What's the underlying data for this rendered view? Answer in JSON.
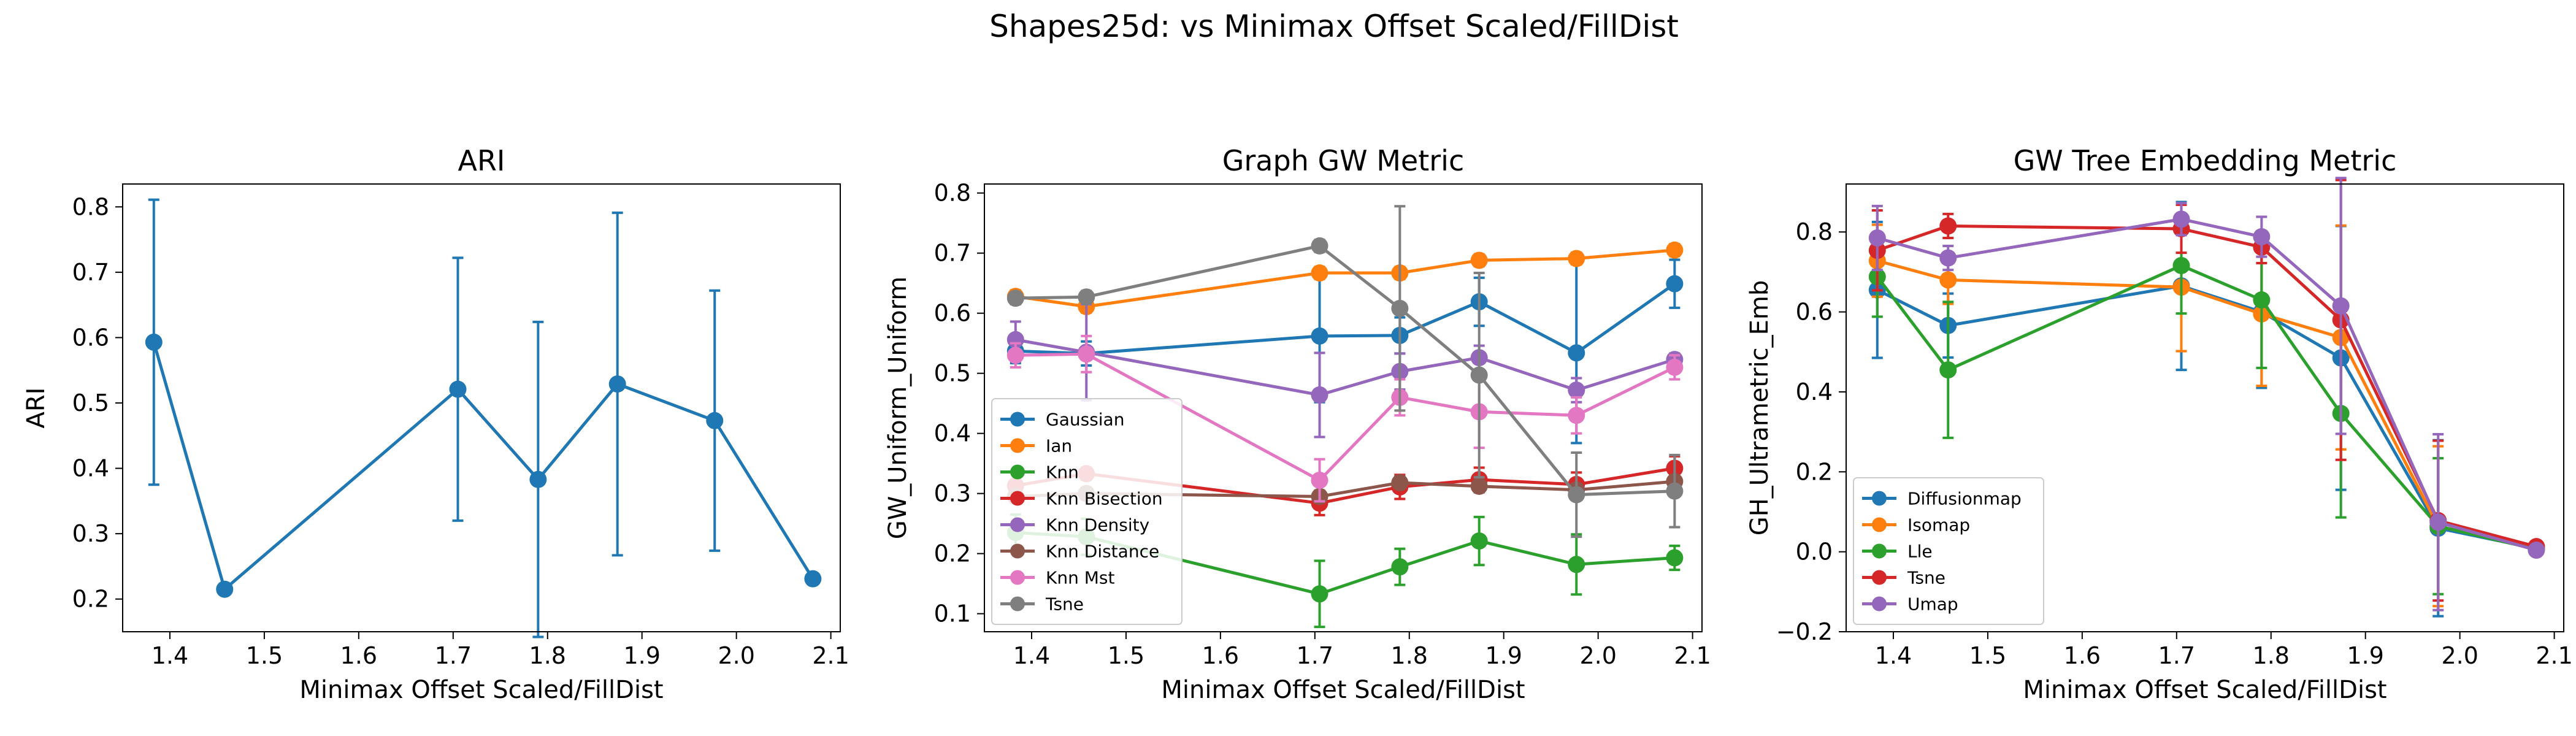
{
  "figure": {
    "suptitle": "Shapes25d: vs Minimax Offset Scaled/FillDist"
  },
  "chart_data": [
    {
      "type": "line",
      "title": "ARI",
      "xlabel": "Minimax Offset Scaled/FillDist",
      "ylabel": "ARI",
      "xlim": [
        1.35,
        2.11
      ],
      "ylim": [
        0.15,
        0.835
      ],
      "xticks": [
        1.4,
        1.5,
        1.6,
        1.7,
        1.8,
        1.9,
        2.0,
        2.1
      ],
      "xtick_labels": [
        "1.4",
        "1.5",
        "1.6",
        "1.7",
        "1.8",
        "1.9",
        "2.0",
        "2.1"
      ],
      "yticks": [
        0.2,
        0.3,
        0.4,
        0.5,
        0.6,
        0.7,
        0.8
      ],
      "ytick_labels": [
        "0.2",
        "0.3",
        "0.4",
        "0.5",
        "0.6",
        "0.7",
        "0.8"
      ],
      "grid": false,
      "legend": "none",
      "series": [
        {
          "color": "#1f77b4",
          "marker": "circle",
          "x": [
            1.383,
            1.458,
            1.705,
            1.79,
            1.874,
            1.977,
            2.081
          ],
          "y": [
            0.593,
            0.215,
            0.521,
            0.383,
            0.529,
            0.473,
            0.231
          ],
          "err": [
            0.218,
            0.0,
            0.201,
            0.241,
            0.262,
            0.199,
            0.0
          ]
        }
      ]
    },
    {
      "type": "line",
      "title": "Graph GW Metric",
      "xlabel": "Minimax Offset Scaled/FillDist",
      "ylabel": "GW_Uniform_Uniform",
      "xlim": [
        1.35,
        2.11
      ],
      "ylim": [
        0.07,
        0.815
      ],
      "xticks": [
        1.4,
        1.5,
        1.6,
        1.7,
        1.8,
        1.9,
        2.0,
        2.1
      ],
      "xtick_labels": [
        "1.4",
        "1.5",
        "1.6",
        "1.7",
        "1.8",
        "1.9",
        "2.0",
        "2.1"
      ],
      "yticks": [
        0.1,
        0.2,
        0.3,
        0.4,
        0.5,
        0.6,
        0.7,
        0.8
      ],
      "ytick_labels": [
        "0.1",
        "0.2",
        "0.3",
        "0.4",
        "0.5",
        "0.6",
        "0.7",
        "0.8"
      ],
      "grid": false,
      "legend": "lower-left",
      "series": [
        {
          "name": "Gaussian",
          "color": "#1f77b4",
          "x": [
            1.383,
            1.458,
            1.705,
            1.79,
            1.874,
            1.977,
            2.081
          ],
          "y": [
            0.537,
            0.533,
            0.562,
            0.563,
            0.619,
            0.534,
            0.649
          ],
          "err": [
            0.02,
            0.02,
            0.11,
            0.03,
            0.04,
            0.15,
            0.04
          ]
        },
        {
          "name": "Ian",
          "color": "#ff7f0e",
          "x": [
            1.383,
            1.458,
            1.705,
            1.79,
            1.874,
            1.977,
            2.081
          ],
          "y": [
            0.628,
            0.611,
            0.667,
            0.667,
            0.688,
            0.691,
            0.705
          ],
          "err": [
            0.01,
            0.01,
            0.01,
            0.01,
            0.01,
            0.01,
            0.01
          ]
        },
        {
          "name": "Knn",
          "color": "#2ca02c",
          "x": [
            1.383,
            1.458,
            1.705,
            1.79,
            1.874,
            1.977,
            2.081
          ],
          "y": [
            0.235,
            0.228,
            0.133,
            0.178,
            0.221,
            0.182,
            0.193
          ],
          "err": [
            0.03,
            0.03,
            0.055,
            0.03,
            0.04,
            0.05,
            0.02
          ]
        },
        {
          "name": "Knn Bisection",
          "color": "#d62728",
          "x": [
            1.383,
            1.458,
            1.705,
            1.79,
            1.874,
            1.977,
            2.081
          ],
          "y": [
            0.313,
            0.333,
            0.284,
            0.311,
            0.323,
            0.315,
            0.342
          ],
          "err": [
            0.01,
            0.01,
            0.02,
            0.02,
            0.02,
            0.02,
            0.02
          ]
        },
        {
          "name": "Knn Density",
          "color": "#9467bd",
          "x": [
            1.383,
            1.458,
            1.705,
            1.79,
            1.874,
            1.977,
            2.081
          ],
          "y": [
            0.556,
            0.535,
            0.464,
            0.503,
            0.526,
            0.472,
            0.523
          ],
          "err": [
            0.03,
            0.08,
            0.07,
            0.03,
            0.02,
            0.02,
            0.01
          ]
        },
        {
          "name": "Knn Distance",
          "color": "#8c564b",
          "x": [
            1.383,
            1.458,
            1.705,
            1.79,
            1.874,
            1.977,
            2.081
          ],
          "y": [
            0.295,
            0.3,
            0.295,
            0.318,
            0.312,
            0.306,
            0.32
          ],
          "err": [
            0.01,
            0.01,
            0.01,
            0.01,
            0.01,
            0.01,
            0.01
          ]
        },
        {
          "name": "Knn Mst",
          "color": "#e377c2",
          "x": [
            1.383,
            1.458,
            1.705,
            1.79,
            1.874,
            1.977,
            2.081
          ],
          "y": [
            0.53,
            0.532,
            0.322,
            0.46,
            0.436,
            0.43,
            0.51
          ],
          "err": [
            0.02,
            0.03,
            0.035,
            0.03,
            0.06,
            0.03,
            0.02
          ]
        },
        {
          "name": "Tsne",
          "color": "#7f7f7f",
          "x": [
            1.383,
            1.458,
            1.705,
            1.79,
            1.874,
            1.977,
            2.081
          ],
          "y": [
            0.625,
            0.627,
            0.712,
            0.608,
            0.497,
            0.298,
            0.304
          ],
          "err": [
            0.01,
            0.01,
            0.01,
            0.17,
            0.17,
            0.07,
            0.06
          ]
        }
      ]
    },
    {
      "type": "line",
      "title": "GW Tree Embedding Metric",
      "xlabel": "Minimax Offset Scaled/FillDist",
      "ylabel": "GH_Ultrametric_Emb",
      "xlim": [
        1.35,
        2.11
      ],
      "ylim": [
        -0.2,
        0.92
      ],
      "xticks": [
        1.4,
        1.5,
        1.6,
        1.7,
        1.8,
        1.9,
        2.0,
        2.1
      ],
      "xtick_labels": [
        "1.4",
        "1.5",
        "1.6",
        "1.7",
        "1.8",
        "1.9",
        "2.0",
        "2.1"
      ],
      "yticks": [
        -0.2,
        0.0,
        0.2,
        0.4,
        0.6,
        0.8
      ],
      "ytick_labels": [
        "−0.2",
        "0.0",
        "0.2",
        "0.4",
        "0.6",
        "0.8"
      ],
      "grid": false,
      "legend": "lower-left",
      "series": [
        {
          "name": "Diffusionmap",
          "color": "#1f77b4",
          "x": [
            1.383,
            1.458,
            1.705,
            1.79,
            1.874,
            1.977,
            2.081
          ],
          "y": [
            0.655,
            0.566,
            0.665,
            0.6,
            0.485,
            0.059,
            0.008
          ],
          "err": [
            0.17,
            0.08,
            0.21,
            0.19,
            0.33,
            0.22,
            0.01
          ]
        },
        {
          "name": "Isomap",
          "color": "#ff7f0e",
          "x": [
            1.383,
            1.458,
            1.705,
            1.79,
            1.874,
            1.977,
            2.081
          ],
          "y": [
            0.728,
            0.68,
            0.662,
            0.595,
            0.536,
            0.064,
            0.008
          ],
          "err": [
            0.09,
            0.06,
            0.16,
            0.18,
            0.28,
            0.2,
            0.01
          ]
        },
        {
          "name": "Lle",
          "color": "#2ca02c",
          "x": [
            1.383,
            1.458,
            1.705,
            1.79,
            1.874,
            1.977,
            2.081
          ],
          "y": [
            0.688,
            0.455,
            0.716,
            0.63,
            0.346,
            0.064,
            0.006
          ],
          "err": [
            0.1,
            0.17,
            0.12,
            0.17,
            0.26,
            0.17,
            0.01
          ]
        },
        {
          "name": "Tsne",
          "color": "#d62728",
          "x": [
            1.383,
            1.458,
            1.705,
            1.79,
            1.874,
            1.977,
            2.081
          ],
          "y": [
            0.754,
            0.815,
            0.808,
            0.762,
            0.58,
            0.078,
            0.013
          ],
          "err": [
            0.1,
            0.03,
            0.06,
            0.04,
            0.35,
            0.2,
            0.01
          ]
        },
        {
          "name": "Umap",
          "color": "#9467bd",
          "x": [
            1.383,
            1.458,
            1.705,
            1.79,
            1.874,
            1.977,
            2.081
          ],
          "y": [
            0.785,
            0.735,
            0.832,
            0.788,
            0.615,
            0.074,
            0.004
          ],
          "err": [
            0.08,
            0.03,
            0.04,
            0.05,
            0.32,
            0.22,
            0.01
          ]
        }
      ]
    }
  ]
}
